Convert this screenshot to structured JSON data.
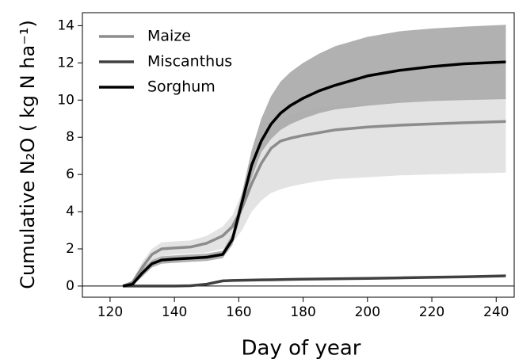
{
  "chart_data": {
    "type": "line",
    "xlabel": "Day of year",
    "ylabel": "Cumulative N₂O ( kg N ha⁻¹)",
    "x": [
      124,
      127,
      130,
      133,
      136,
      140,
      145,
      150,
      155,
      158,
      161,
      164,
      167,
      170,
      173,
      176,
      180,
      185,
      190,
      200,
      210,
      220,
      230,
      243
    ],
    "series": [
      {
        "name": "Maize",
        "color": "#8c8c8c",
        "band_color": "#e0e0e0",
        "values": [
          0,
          0.2,
          1.0,
          1.7,
          2.0,
          2.05,
          2.1,
          2.3,
          2.7,
          3.2,
          4.2,
          5.5,
          6.6,
          7.4,
          7.8,
          7.95,
          8.1,
          8.25,
          8.4,
          8.55,
          8.65,
          8.72,
          8.78,
          8.85
        ],
        "band_lower": [
          0,
          0.1,
          0.7,
          1.3,
          1.6,
          1.7,
          1.75,
          1.8,
          2.0,
          2.3,
          3.0,
          4.0,
          4.6,
          5.0,
          5.2,
          5.35,
          5.5,
          5.65,
          5.75,
          5.85,
          5.95,
          6.0,
          6.05,
          6.1
        ],
        "band_upper": [
          0,
          0.3,
          1.3,
          2.0,
          2.35,
          2.4,
          2.45,
          2.7,
          3.2,
          3.8,
          5.0,
          6.6,
          7.9,
          8.5,
          8.9,
          9.2,
          9.4,
          9.6,
          9.7,
          9.8,
          9.9,
          10.0,
          10.05,
          10.1
        ]
      },
      {
        "name": "Miscanthus",
        "color": "#404040",
        "values": [
          0,
          0,
          0,
          0,
          0,
          0,
          0.02,
          0.1,
          0.28,
          0.3,
          0.31,
          0.32,
          0.33,
          0.34,
          0.35,
          0.36,
          0.37,
          0.38,
          0.39,
          0.41,
          0.44,
          0.47,
          0.5,
          0.55
        ]
      },
      {
        "name": "Sorghum",
        "color": "#000000",
        "band_color": "#a8a8a8",
        "values": [
          0,
          0.1,
          0.7,
          1.2,
          1.4,
          1.45,
          1.5,
          1.55,
          1.7,
          2.5,
          4.5,
          6.5,
          7.8,
          8.7,
          9.3,
          9.7,
          10.1,
          10.5,
          10.8,
          11.3,
          11.6,
          11.8,
          11.95,
          12.05
        ],
        "band_lower": [
          0,
          0.05,
          0.5,
          1.0,
          1.2,
          1.25,
          1.3,
          1.35,
          1.5,
          2.2,
          4.0,
          5.8,
          7.2,
          7.9,
          8.4,
          8.7,
          9.0,
          9.3,
          9.5,
          9.7,
          9.85,
          9.95,
          10.0,
          10.05
        ],
        "band_upper": [
          0,
          0.15,
          0.9,
          1.4,
          1.6,
          1.65,
          1.7,
          1.75,
          1.9,
          2.8,
          5.0,
          7.3,
          9.0,
          10.2,
          11.0,
          11.5,
          12.0,
          12.5,
          12.9,
          13.4,
          13.7,
          13.85,
          13.95,
          14.05
        ]
      }
    ],
    "xlim": [
      111.4,
      245.6
    ],
    "xticks": [
      120,
      140,
      160,
      180,
      200,
      220,
      240
    ],
    "ylim": [
      -0.6,
      14.7
    ],
    "yticks": [
      0,
      2,
      4,
      6,
      8,
      10,
      12,
      14
    ],
    "legend": "upper left"
  }
}
